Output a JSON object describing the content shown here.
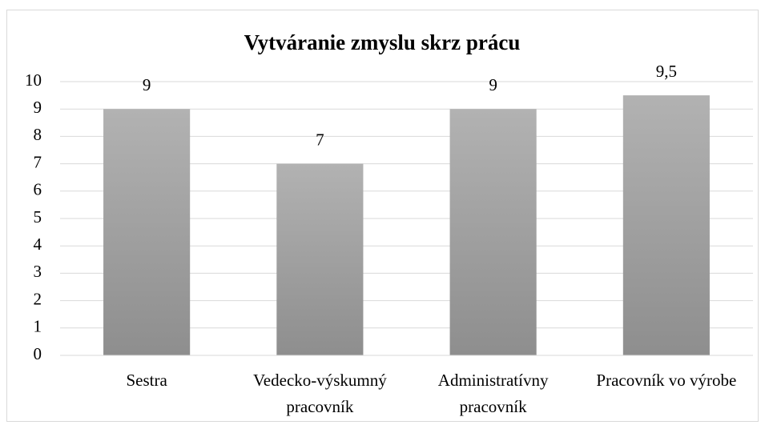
{
  "chart_data": {
    "type": "bar",
    "title": "Vytváranie zmyslu skrz prácu",
    "categories": [
      "Sestra",
      "Vedecko-výskumný pracovník",
      "Administratívny pracovník",
      "Pracovník vo výrobe"
    ],
    "values": [
      9,
      7,
      9,
      9.5
    ],
    "value_labels": [
      "9",
      "7",
      "9",
      "9,5"
    ],
    "color": "#a0a0a0",
    "ylim": [
      0,
      10
    ],
    "yticks": [
      0,
      1,
      2,
      3,
      4,
      5,
      6,
      7,
      8,
      9,
      10
    ],
    "grid": true
  }
}
